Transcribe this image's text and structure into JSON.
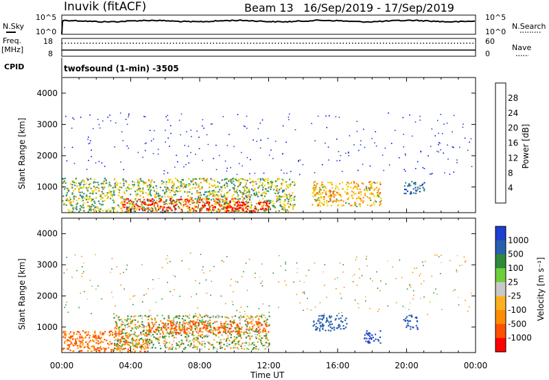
{
  "header": {
    "station": "Inuvik (fitACF)",
    "beam": "Beam 13",
    "date_range": "16/Sep/2019 - 17/Sep/2019"
  },
  "summary": {
    "nsky_label": "N.Sky",
    "nsky_ticks": [
      "10^5",
      "10^0"
    ],
    "nsearch_label": "N.Search",
    "nsearch_ticks": [
      "10^5",
      "10^0"
    ],
    "freq_label_1": "Freq.",
    "freq_label_2": "[MHz]",
    "freq_ticks": [
      "18",
      "8"
    ],
    "nave_label": "Nave",
    "nave_ticks": [
      "60",
      "0"
    ],
    "cpid_label": "CPID",
    "cpid_text": "twofsound (1-min) -3505"
  },
  "panels": {
    "power": {
      "ylabel": "Slant Range [km]",
      "cbar_label": "Power [dB]"
    },
    "velocity": {
      "ylabel": "Slant Range [km]",
      "cbar_label": "Velocity [m s⁻¹]"
    }
  },
  "xaxis": {
    "label": "Time UT",
    "ticks": [
      "00:00",
      "04:00",
      "08:00",
      "12:00",
      "16:00",
      "20:00",
      "00:00"
    ]
  },
  "colors": {
    "power_scale": [
      "#0000ff",
      "#1f3fc8",
      "#2e6fa8",
      "#3c9a5a",
      "#f0d000",
      "#ff9a00",
      "#ff5000",
      "#ff0000"
    ],
    "velocity_scale": [
      "#1f3fd0",
      "#2a5fb0",
      "#2e8a3a",
      "#6ecf3a",
      "#c8c8c8",
      "#ffb020",
      "#ff8c00",
      "#ff5000",
      "#ff0000"
    ]
  },
  "chart_data": [
    {
      "type": "heatmap",
      "title": "",
      "xlabel": "",
      "ylabel": "Slant Range [km]",
      "xlim": [
        "00:00",
        "00:00"
      ],
      "ylim": [
        180,
        4500
      ],
      "yticks": [
        1000,
        2000,
        3000,
        4000
      ],
      "colorbar": {
        "label": "Power [dB]",
        "ticks": [
          4,
          8,
          12,
          16,
          20,
          24,
          28
        ],
        "range": [
          0,
          32
        ]
      },
      "description_regions": [
        {
          "t_start": 0.0,
          "t_end": 13.5,
          "range_low": 200,
          "range_high": 1300,
          "value": 16
        },
        {
          "t_start": 3.5,
          "t_end": 10.5,
          "range_low": 250,
          "range_high": 650,
          "value": 28
        },
        {
          "t_start": 9.5,
          "t_end": 12.0,
          "range_low": 200,
          "range_high": 550,
          "value": 28
        },
        {
          "t_start": 14.5,
          "t_end": 18.5,
          "range_low": 400,
          "range_high": 1200,
          "value": 20
        },
        {
          "t_start": 19.8,
          "t_end": 21.0,
          "range_low": 800,
          "range_high": 1200,
          "value": 10
        }
      ]
    },
    {
      "type": "heatmap",
      "title": "",
      "xlabel": "Time UT",
      "ylabel": "Slant Range [km]",
      "xlim": [
        "00:00",
        "00:00"
      ],
      "ylim": [
        180,
        4500
      ],
      "yticks": [
        1000,
        2000,
        3000,
        4000
      ],
      "colorbar": {
        "label": "Velocity [m s⁻¹]",
        "ticks": [
          1000,
          500,
          100,
          25,
          -25,
          -100,
          -500,
          -1000
        ]
      },
      "description_regions": [
        {
          "t_start": 0.0,
          "t_end": 5.0,
          "range_low": 200,
          "range_high": 900,
          "value": -300
        },
        {
          "t_start": 3.0,
          "t_end": 12.0,
          "range_low": 300,
          "range_high": 1400,
          "value": 0
        },
        {
          "t_start": 5.0,
          "t_end": 12.0,
          "range_low": 800,
          "range_high": 1200,
          "value": -400
        },
        {
          "t_start": 14.5,
          "t_end": 16.5,
          "range_low": 900,
          "range_high": 1400,
          "value": 600
        },
        {
          "t_start": 17.5,
          "t_end": 18.5,
          "range_low": 500,
          "range_high": 900,
          "value": 800
        },
        {
          "t_start": 19.8,
          "t_end": 20.6,
          "range_low": 950,
          "range_high": 1400,
          "value": 700
        }
      ]
    }
  ]
}
